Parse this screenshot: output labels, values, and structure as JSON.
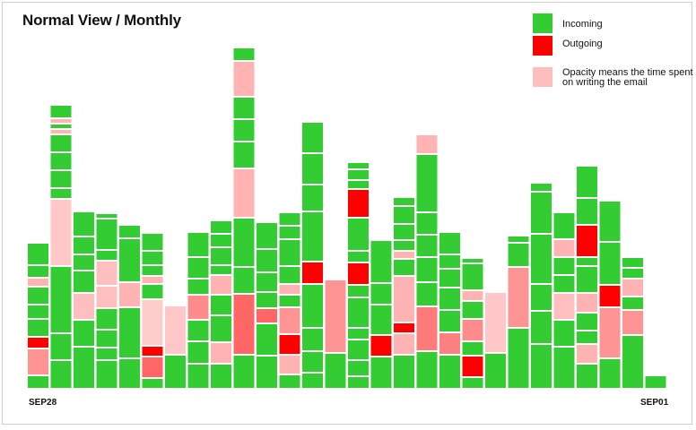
{
  "title": "Normal View / Monthly",
  "legend": {
    "incoming": {
      "label": "Incoming",
      "color": "#33cc33"
    },
    "outgoing": {
      "label": "Outgoing",
      "color": "#ff0000"
    },
    "opacity_note": {
      "label": "Opacity means the time spent on writing the email",
      "color": "#ffbdbd"
    }
  },
  "axis": {
    "start_label": "SEP28",
    "end_label": "SEP01"
  },
  "chart_data": {
    "type": "bar",
    "subtype": "stacked-blocks",
    "title": "Normal View / Monthly",
    "x_start": "SEP28",
    "x_end": "SEP01",
    "block_types": {
      "I": "Incoming",
      "O": "Outgoing",
      "o": "Outgoing (opacity = time spent on writing the email)"
    },
    "colors": {
      "I": "#33cc33",
      "O": "#ff0000"
    },
    "columns": [
      {
        "blocks": [
          [
            "I",
            15
          ],
          [
            "o",
            30,
            0.42
          ],
          [
            "O",
            13
          ],
          [
            "I",
            20
          ],
          [
            "I",
            16
          ],
          [
            "I",
            20
          ],
          [
            "o",
            10,
            0.3
          ],
          [
            "I",
            14
          ],
          [
            "I",
            25
          ]
        ]
      },
      {
        "blocks": [
          [
            "I",
            32
          ],
          [
            "I",
            30
          ],
          [
            "I",
            75
          ],
          [
            "o",
            75,
            0.22
          ],
          [
            "I",
            12
          ],
          [
            "I",
            20
          ],
          [
            "I",
            20
          ],
          [
            "I",
            20
          ],
          [
            "o",
            6,
            0.3
          ],
          [
            "I",
            6
          ],
          [
            "o",
            6,
            0.3
          ],
          [
            "I",
            15
          ]
        ]
      },
      {
        "blocks": [
          [
            "I",
            47
          ],
          [
            "I",
            30
          ],
          [
            "o",
            30,
            0.25
          ],
          [
            "I",
            25
          ],
          [
            "I",
            18
          ],
          [
            "I",
            20
          ],
          [
            "I",
            28
          ]
        ]
      },
      {
        "blocks": [
          [
            "I",
            32
          ],
          [
            "I",
            14
          ],
          [
            "I",
            20
          ],
          [
            "I",
            24
          ],
          [
            "o",
            25,
            0.25
          ],
          [
            "o",
            28,
            0.25
          ],
          [
            "I",
            12
          ],
          [
            "I",
            35
          ],
          [
            "I",
            6
          ]
        ]
      },
      {
        "blocks": [
          [
            "I",
            34
          ],
          [
            "I",
            57
          ],
          [
            "o",
            28,
            0.3
          ],
          [
            "I",
            49
          ],
          [
            "I",
            15
          ]
        ]
      },
      {
        "blocks": [
          [
            "I",
            12
          ],
          [
            "o",
            24,
            0.6
          ],
          [
            "O",
            12
          ],
          [
            "o",
            52,
            0.2
          ],
          [
            "I",
            17
          ],
          [
            "o",
            9,
            0.3
          ],
          [
            "I",
            12
          ],
          [
            "I",
            16
          ],
          [
            "I",
            20
          ]
        ]
      },
      {
        "blocks": [
          [
            "I",
            38
          ],
          [
            "o",
            55,
            0.22
          ]
        ]
      },
      {
        "blocks": [
          [
            "I",
            28
          ],
          [
            "I",
            25
          ],
          [
            "I",
            24
          ],
          [
            "o",
            28,
            0.45
          ],
          [
            "I",
            18
          ],
          [
            "I",
            24
          ],
          [
            "I",
            28
          ]
        ]
      },
      {
        "blocks": [
          [
            "I",
            28
          ],
          [
            "o",
            24,
            0.3
          ],
          [
            "I",
            30
          ],
          [
            "I",
            23
          ],
          [
            "o",
            22,
            0.3
          ],
          [
            "I",
            11
          ],
          [
            "I",
            20
          ],
          [
            "I",
            15
          ],
          [
            "I",
            15
          ]
        ]
      },
      {
        "blocks": [
          [
            "I",
            38
          ],
          [
            "o",
            68,
            0.6
          ],
          [
            "I",
            30
          ],
          [
            "I",
            55
          ],
          [
            "o",
            55,
            0.3
          ],
          [
            "I",
            30
          ],
          [
            "I",
            25
          ],
          [
            "I",
            25
          ],
          [
            "o",
            40,
            0.3
          ],
          [
            "I",
            15
          ]
        ]
      },
      {
        "blocks": [
          [
            "I",
            37
          ],
          [
            "I",
            36
          ],
          [
            "o",
            17,
            0.6
          ],
          [
            "I",
            18
          ],
          [
            "I",
            22
          ],
          [
            "I",
            26
          ],
          [
            "I",
            30
          ]
        ]
      },
      {
        "blocks": [
          [
            "I",
            16
          ],
          [
            "o",
            22,
            0.3
          ],
          [
            "O",
            23
          ],
          [
            "o",
            30,
            0.42
          ],
          [
            "I",
            14
          ],
          [
            "o",
            12,
            0.3
          ],
          [
            "I",
            20
          ],
          [
            "I",
            30
          ],
          [
            "I",
            15
          ],
          [
            "I",
            15
          ]
        ]
      },
      {
        "blocks": [
          [
            "I",
            18
          ],
          [
            "I",
            24
          ],
          [
            "I",
            26
          ],
          [
            "I",
            49
          ],
          [
            "O",
            25
          ],
          [
            "I",
            56
          ],
          [
            "I",
            30
          ],
          [
            "I",
            35
          ],
          [
            "I",
            35
          ]
        ]
      },
      {
        "blocks": [
          [
            "I",
            40
          ],
          [
            "o",
            82,
            0.42
          ]
        ]
      },
      {
        "blocks": [
          [
            "I",
            14
          ],
          [
            "I",
            18
          ],
          [
            "I",
            23
          ],
          [
            "I",
            13
          ],
          [
            "I",
            34
          ],
          [
            "I",
            14
          ],
          [
            "O",
            25
          ],
          [
            "I",
            13
          ],
          [
            "I",
            37
          ],
          [
            "O",
            32
          ],
          [
            "I",
            10
          ],
          [
            "I",
            12
          ],
          [
            "I",
            8
          ]
        ]
      },
      {
        "blocks": [
          [
            "I",
            36
          ],
          [
            "O",
            24
          ],
          [
            "I",
            34
          ],
          [
            "I",
            24
          ],
          [
            "I",
            48
          ]
        ]
      },
      {
        "blocks": [
          [
            "I",
            38
          ],
          [
            "o",
            24,
            0.3
          ],
          [
            "O",
            12
          ],
          [
            "o",
            52,
            0.3
          ],
          [
            "I",
            19
          ],
          [
            "o",
            9,
            0.3
          ],
          [
            "I",
            12
          ],
          [
            "I",
            18
          ],
          [
            "I",
            20
          ],
          [
            "I",
            10
          ]
        ]
      },
      {
        "blocks": [
          [
            "I",
            42
          ],
          [
            "o",
            50,
            0.52
          ],
          [
            "I",
            27
          ],
          [
            "I",
            28
          ],
          [
            "I",
            25
          ],
          [
            "I",
            25
          ],
          [
            "I",
            65
          ],
          [
            "o",
            22,
            0.3
          ]
        ]
      },
      {
        "blocks": [
          [
            "I",
            38
          ],
          [
            "o",
            25,
            0.5
          ],
          [
            "I",
            25
          ],
          [
            "I",
            25
          ],
          [
            "I",
            21
          ],
          [
            "I",
            16
          ],
          [
            "I",
            25
          ]
        ]
      },
      {
        "blocks": [
          [
            "I",
            13
          ],
          [
            "O",
            24
          ],
          [
            "I",
            16
          ],
          [
            "o",
            25,
            0.45
          ],
          [
            "I",
            20
          ],
          [
            "o",
            12,
            0.3
          ],
          [
            "I",
            30
          ],
          [
            "I",
            6
          ]
        ]
      },
      {
        "blocks": [
          [
            "I",
            40
          ],
          [
            "o",
            68,
            0.22
          ]
        ]
      },
      {
        "blocks": [
          [
            "I",
            68
          ],
          [
            "o",
            68,
            0.42
          ],
          [
            "I",
            27
          ],
          [
            "I",
            8
          ]
        ]
      },
      {
        "blocks": [
          [
            "I",
            50
          ],
          [
            "I",
            37
          ],
          [
            "I",
            30
          ],
          [
            "I",
            56
          ],
          [
            "I",
            47
          ],
          [
            "I",
            10
          ]
        ]
      },
      {
        "blocks": [
          [
            "I",
            47
          ],
          [
            "I",
            30
          ],
          [
            "o",
            30,
            0.25
          ],
          [
            "I",
            20
          ],
          [
            "I",
            20
          ],
          [
            "o",
            20,
            0.3
          ],
          [
            "I",
            30
          ]
        ]
      },
      {
        "blocks": [
          [
            "I",
            28
          ],
          [
            "o",
            22,
            0.3
          ],
          [
            "I",
            15
          ],
          [
            "I",
            20
          ],
          [
            "o",
            22,
            0.3
          ],
          [
            "I",
            30
          ],
          [
            "I",
            10
          ],
          [
            "O",
            36
          ],
          [
            "I",
            30
          ],
          [
            "I",
            36
          ]
        ]
      },
      {
        "blocks": [
          [
            "I",
            34
          ],
          [
            "o",
            57,
            0.42
          ],
          [
            "O",
            25
          ],
          [
            "I",
            48
          ],
          [
            "I",
            46
          ]
        ]
      },
      {
        "blocks": [
          [
            "I",
            60
          ],
          [
            "o",
            28,
            0.42
          ],
          [
            "I",
            15
          ],
          [
            "o",
            20,
            0.3
          ],
          [
            "I",
            12
          ],
          [
            "I",
            12
          ]
        ]
      },
      {
        "blocks": [
          [
            "I",
            15
          ]
        ]
      }
    ]
  }
}
